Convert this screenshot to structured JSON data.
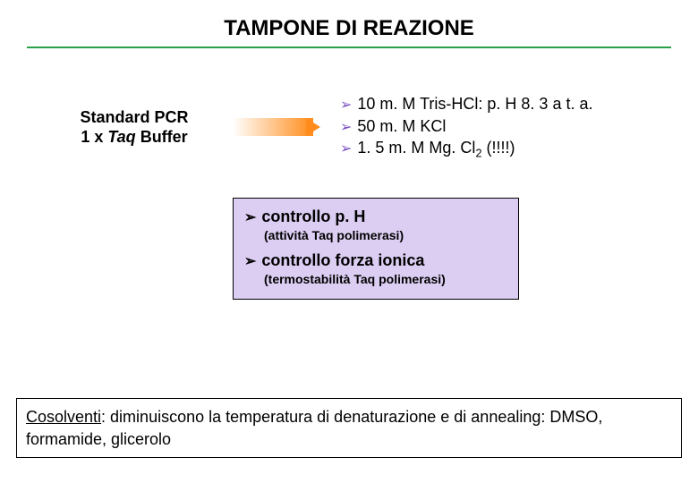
{
  "title": "TAMPONE DI REAZIONE",
  "hr_color": "#2aa04a",
  "left_label": {
    "line1": "Standard PCR",
    "line2_pre": "1 x ",
    "line2_italic": "Taq",
    "line2_post": " Buffer"
  },
  "arrow": {
    "grad_from": "#ffffff",
    "grad_to": "#ff8c1a"
  },
  "buffer": {
    "bullet_color": "#7a4fbf",
    "items": [
      {
        "text": "10 m. M Tris-HCl:  p. H 8. 3 a t. a."
      },
      {
        "text": "50 m. M KCl"
      },
      {
        "pre": "1. 5 m. M Mg. Cl",
        "sub": "2",
        "post": " (!!!!)"
      }
    ]
  },
  "box": {
    "bg": "#dccef2",
    "items": [
      {
        "head": "controllo p. H",
        "sub": "(attività Taq polimerasi)"
      },
      {
        "head": "controllo forza ionica",
        "sub": "(termostabilità Taq polimerasi)"
      }
    ]
  },
  "footer": {
    "underlined": "Cosolventi",
    "rest": ": diminuiscono la temperatura di denaturazione e di annealing: DMSO, formamide, glicerolo"
  }
}
